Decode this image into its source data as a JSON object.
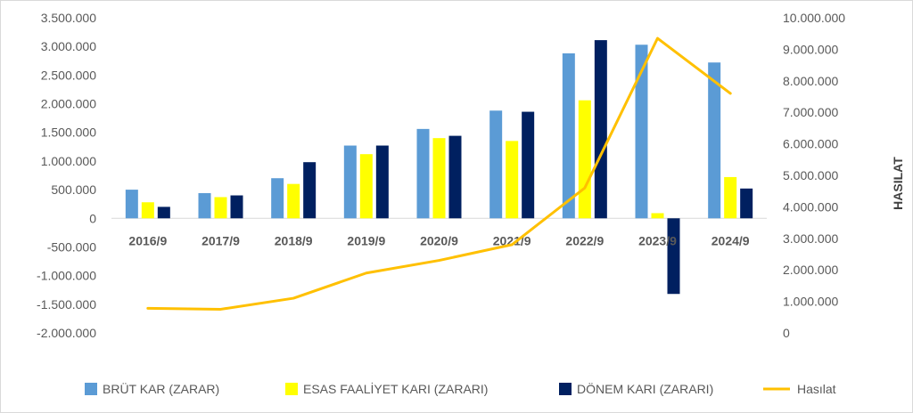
{
  "chart_data": {
    "type": "bar",
    "categories": [
      "2016/9",
      "2017/9",
      "2018/9",
      "2019/9",
      "2020/9",
      "2021/9",
      "2022/9",
      "2023/9",
      "2024/9"
    ],
    "series": [
      {
        "name": "BRÜT KAR (ZARAR)",
        "type": "bar",
        "axis": "left",
        "color": "#5B9BD5",
        "values": [
          500000,
          440000,
          700000,
          1270000,
          1560000,
          1880000,
          2880000,
          3030000,
          2720000
        ]
      },
      {
        "name": "ESAS FAALİYET KARI (ZARARI)",
        "type": "bar",
        "axis": "left",
        "color": "#FFFF00",
        "values": [
          280000,
          370000,
          600000,
          1120000,
          1400000,
          1350000,
          2060000,
          90000,
          720000
        ]
      },
      {
        "name": "DÖNEM KARI (ZARARI)",
        "type": "bar",
        "axis": "left",
        "color": "#002060",
        "values": [
          200000,
          400000,
          980000,
          1270000,
          1440000,
          1860000,
          3110000,
          -1320000,
          520000
        ]
      },
      {
        "name": "Hasılat",
        "type": "line",
        "axis": "right",
        "color": "#FFC000",
        "values": [
          780000,
          750000,
          1100000,
          1900000,
          2300000,
          2800000,
          4600000,
          9350000,
          7600000
        ]
      }
    ],
    "yleft": {
      "min": -2000000,
      "max": 3500000,
      "ticks": [
        3500000,
        3000000,
        2500000,
        2000000,
        1500000,
        1000000,
        500000,
        0,
        -500000,
        -1000000,
        -1500000,
        -2000000
      ],
      "tick_labels": [
        "3.500.000",
        "3.000.000",
        "2.500.000",
        "2.000.000",
        "1.500.000",
        "1.000.000",
        "500.000",
        "0",
        "-500.000",
        "-1.000.000",
        "-1.500.000",
        "-2.000.000"
      ]
    },
    "yright": {
      "min": 0,
      "max": 10000000,
      "label": "HASILAT",
      "ticks": [
        10000000,
        9000000,
        8000000,
        7000000,
        6000000,
        5000000,
        4000000,
        3000000,
        2000000,
        1000000,
        0
      ],
      "tick_labels": [
        "10.000.000",
        "9.000.000",
        "8.000.000",
        "7.000.000",
        "6.000.000",
        "5.000.000",
        "4.000.000",
        "3.000.000",
        "2.000.000",
        "1.000.000",
        "0"
      ]
    },
    "grid": false,
    "legend_position": "bottom"
  }
}
